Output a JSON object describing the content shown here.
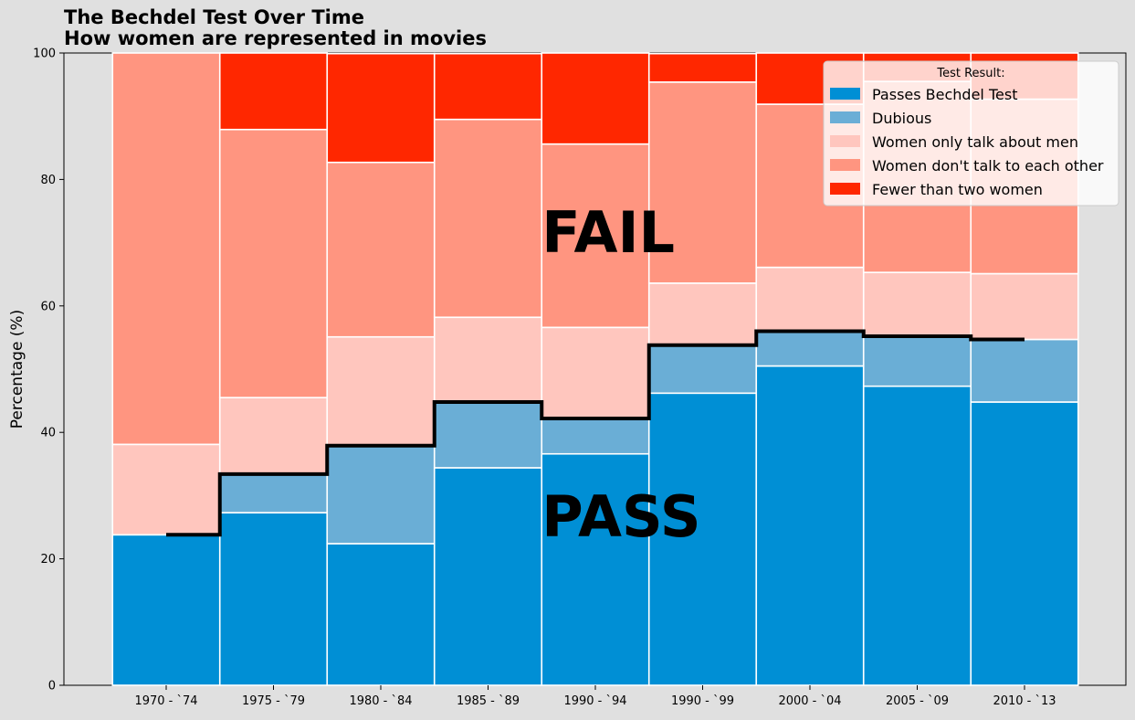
{
  "chart_data": {
    "type": "bar",
    "stacked": true,
    "title": "The Bechdel Test Over Time",
    "subtitle": "How women are represented in movies",
    "xlabel": "",
    "ylabel": "Percentage (%)",
    "ylim": [
      0,
      100
    ],
    "yticks": [
      0,
      20,
      40,
      60,
      80,
      100
    ],
    "grid": false,
    "legend_title": "Test Result:",
    "legend_position": "top-right",
    "categories": [
      "1970 - `74",
      "1975 - `79",
      "1980 - `84",
      "1985 - `89",
      "1990 - `94",
      "1990 - `99",
      "2000 - `04",
      "2005 - `09",
      "2010 - `13"
    ],
    "series": [
      {
        "name": "Passes Bechdel Test",
        "color": "#008fd5",
        "values": [
          23.8,
          27.3,
          22.4,
          34.4,
          36.6,
          46.2,
          50.5,
          47.3,
          44.8
        ]
      },
      {
        "name": "Dubious",
        "color": "#6aaed6",
        "values": [
          0.0,
          6.1,
          15.5,
          10.4,
          5.6,
          7.6,
          5.5,
          7.9,
          9.9
        ]
      },
      {
        "name": "Women only talk about men",
        "color": "#ffc6be",
        "values": [
          14.3,
          12.1,
          17.2,
          13.4,
          14.4,
          9.8,
          10.1,
          10.1,
          10.4
        ]
      },
      {
        "name": "Women don't talk to each other",
        "color": "#ff9580",
        "values": [
          61.9,
          42.4,
          27.6,
          31.3,
          29.0,
          31.8,
          25.8,
          30.2,
          27.6
        ]
      },
      {
        "name": "Fewer than two women",
        "color": "#ff2700",
        "values": [
          0.0,
          12.1,
          17.2,
          10.4,
          14.4,
          4.5,
          8.1,
          4.5,
          7.3
        ]
      }
    ],
    "pass_line": {
      "color": "#000000",
      "values": [
        23.8,
        33.4,
        37.9,
        44.8,
        42.2,
        53.8,
        56.0,
        55.2,
        54.7
      ]
    },
    "annotations": [
      {
        "text": "FAIL",
        "x_index": 4,
        "y": 72
      },
      {
        "text": "PASS",
        "x_index": 4,
        "y": 27
      }
    ]
  }
}
